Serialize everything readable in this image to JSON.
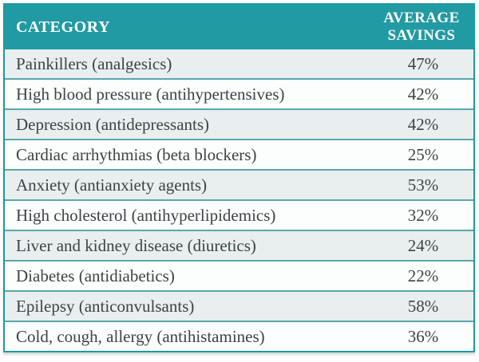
{
  "chart_data": {
    "type": "table",
    "columns": [
      "CATEGORY",
      "AVERAGE SAVINGS"
    ],
    "rows": [
      {
        "category": "Painkillers (analgesics)",
        "average_savings": "47%"
      },
      {
        "category": "High blood pressure (antihypertensives)",
        "average_savings": "42%"
      },
      {
        "category": "Depression (antidepressants)",
        "average_savings": "42%"
      },
      {
        "category": "Cardiac arrhythmias (beta blockers)",
        "average_savings": "25%"
      },
      {
        "category": "Anxiety (antianxiety agents)",
        "average_savings": "53%"
      },
      {
        "category": "High cholesterol (antihyperlipidemics)",
        "average_savings": "32%"
      },
      {
        "category": "Liver and kidney disease (diuretics)",
        "average_savings": "24%"
      },
      {
        "category": "Diabetes (antidiabetics)",
        "average_savings": "22%"
      },
      {
        "category": "Epilepsy (anticonvulsants)",
        "average_savings": "58%"
      },
      {
        "category": "Cold, cough, allergy (antihistamines)",
        "average_savings": "36%"
      }
    ]
  },
  "colors": {
    "header_bg": "#219aa3",
    "header_text": "#ffffff",
    "outer_border": "#1f98a1",
    "row_separator": "#5aa7ac",
    "row_bg_odd": "#e8efee",
    "row_bg_even": "#fcfdfd",
    "body_text": "#3c4347"
  }
}
